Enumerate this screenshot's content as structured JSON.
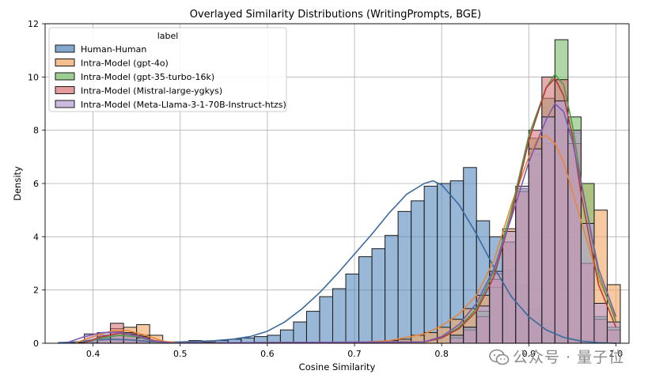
{
  "chart_data": {
    "type": "histogram",
    "title": "Overlayed Similarity Distributions (WritingPrompts, BGE)",
    "xlabel": "Cosine Similarity",
    "ylabel": "Density",
    "xlim": [
      0.345,
      1.015
    ],
    "ylim": [
      0,
      12
    ],
    "xticks": [
      "0.4",
      "0.5",
      "0.6",
      "0.7",
      "0.8",
      "0.9",
      "1.0"
    ],
    "yticks": [
      "0",
      "2",
      "4",
      "6",
      "8",
      "10",
      "12"
    ],
    "grid": true,
    "legend": {
      "title": "label",
      "placement": "top-left"
    },
    "bin_width": 0.015,
    "series": [
      {
        "name": "Human-Human",
        "color": "#5a8bbd",
        "line_color": "#3a6a9e",
        "bins": [
          [
            0.36,
            0.02
          ],
          [
            0.375,
            0.03
          ],
          [
            0.39,
            0.05
          ],
          [
            0.405,
            0.1
          ],
          [
            0.42,
            0.1
          ],
          [
            0.435,
            0.1
          ],
          [
            0.45,
            0.08
          ],
          [
            0.465,
            0.06
          ],
          [
            0.48,
            0.05
          ],
          [
            0.495,
            0.05
          ],
          [
            0.51,
            0.1
          ],
          [
            0.525,
            0.05
          ],
          [
            0.54,
            0.1
          ],
          [
            0.555,
            0.15
          ],
          [
            0.57,
            0.2
          ],
          [
            0.585,
            0.25
          ],
          [
            0.6,
            0.3
          ],
          [
            0.615,
            0.5
          ],
          [
            0.63,
            0.8
          ],
          [
            0.645,
            1.2
          ],
          [
            0.66,
            1.75
          ],
          [
            0.675,
            2.05
          ],
          [
            0.69,
            2.6
          ],
          [
            0.705,
            3.25
          ],
          [
            0.72,
            3.55
          ],
          [
            0.735,
            4.05
          ],
          [
            0.75,
            4.95
          ],
          [
            0.765,
            5.35
          ],
          [
            0.78,
            5.9
          ],
          [
            0.795,
            6.0
          ],
          [
            0.81,
            6.1
          ],
          [
            0.825,
            6.6
          ],
          [
            0.84,
            4.6
          ],
          [
            0.855,
            4.0
          ],
          [
            0.87,
            2.75
          ],
          [
            0.885,
            2.2
          ],
          [
            0.9,
            1.3
          ],
          [
            0.915,
            0.75
          ],
          [
            0.93,
            0.45
          ],
          [
            0.945,
            0.2
          ],
          [
            0.96,
            0.12
          ],
          [
            0.975,
            0.05
          ]
        ],
        "kde": [
          [
            0.36,
            0.02
          ],
          [
            0.38,
            0.05
          ],
          [
            0.4,
            0.12
          ],
          [
            0.42,
            0.15
          ],
          [
            0.44,
            0.13
          ],
          [
            0.46,
            0.08
          ],
          [
            0.48,
            0.04
          ],
          [
            0.5,
            0.05
          ],
          [
            0.52,
            0.07
          ],
          [
            0.54,
            0.1
          ],
          [
            0.56,
            0.15
          ],
          [
            0.58,
            0.25
          ],
          [
            0.6,
            0.45
          ],
          [
            0.62,
            0.8
          ],
          [
            0.64,
            1.3
          ],
          [
            0.66,
            1.9
          ],
          [
            0.68,
            2.6
          ],
          [
            0.7,
            3.35
          ],
          [
            0.72,
            4.1
          ],
          [
            0.74,
            4.9
          ],
          [
            0.76,
            5.6
          ],
          [
            0.78,
            6.0
          ],
          [
            0.79,
            6.1
          ],
          [
            0.8,
            5.95
          ],
          [
            0.82,
            5.2
          ],
          [
            0.84,
            4.1
          ],
          [
            0.86,
            2.85
          ],
          [
            0.88,
            1.75
          ],
          [
            0.9,
            1.0
          ],
          [
            0.92,
            0.5
          ],
          [
            0.94,
            0.22
          ],
          [
            0.96,
            0.08
          ],
          [
            0.98,
            0.02
          ],
          [
            1.0,
            0.0
          ]
        ]
      },
      {
        "name": "Intra-Model (gpt-4o)",
        "color": "#f0a868",
        "line_color": "#e8883a",
        "bins": [
          [
            0.405,
            0.3
          ],
          [
            0.42,
            0.55
          ],
          [
            0.435,
            0.6
          ],
          [
            0.45,
            0.7
          ],
          [
            0.465,
            0.3
          ],
          [
            0.72,
            0.05
          ],
          [
            0.735,
            0.1
          ],
          [
            0.75,
            0.15
          ],
          [
            0.765,
            0.3
          ],
          [
            0.78,
            0.4
          ],
          [
            0.795,
            0.6
          ],
          [
            0.81,
            0.9
          ],
          [
            0.825,
            1.3
          ],
          [
            0.84,
            1.8
          ],
          [
            0.855,
            2.6
          ],
          [
            0.87,
            4.3
          ],
          [
            0.885,
            5.7
          ],
          [
            0.9,
            7.1
          ],
          [
            0.915,
            7.5
          ],
          [
            0.93,
            8.0
          ],
          [
            0.945,
            7.9
          ],
          [
            0.96,
            6.0
          ],
          [
            0.975,
            5.0
          ],
          [
            0.99,
            2.2
          ]
        ],
        "kde": [
          [
            0.38,
            0.02
          ],
          [
            0.4,
            0.25
          ],
          [
            0.42,
            0.45
          ],
          [
            0.44,
            0.48
          ],
          [
            0.46,
            0.3
          ],
          [
            0.48,
            0.08
          ],
          [
            0.5,
            0.01
          ],
          [
            0.7,
            0.02
          ],
          [
            0.74,
            0.1
          ],
          [
            0.78,
            0.35
          ],
          [
            0.8,
            0.65
          ],
          [
            0.82,
            1.1
          ],
          [
            0.84,
            1.8
          ],
          [
            0.86,
            3.1
          ],
          [
            0.88,
            5.2
          ],
          [
            0.9,
            7.0
          ],
          [
            0.91,
            7.7
          ],
          [
            0.92,
            7.8
          ],
          [
            0.93,
            7.5
          ],
          [
            0.94,
            6.8
          ],
          [
            0.96,
            4.6
          ],
          [
            0.98,
            2.4
          ],
          [
            1.0,
            0.95
          ]
        ]
      },
      {
        "name": "Intra-Model (gpt-35-turbo-16k)",
        "color": "#7cbf6e",
        "line_color": "#4d9a44",
        "bins": [
          [
            0.405,
            0.2
          ],
          [
            0.42,
            0.3
          ],
          [
            0.435,
            0.35
          ],
          [
            0.45,
            0.3
          ],
          [
            0.81,
            0.3
          ],
          [
            0.825,
            0.6
          ],
          [
            0.84,
            1.2
          ],
          [
            0.855,
            2.1
          ],
          [
            0.87,
            3.8
          ],
          [
            0.885,
            5.8
          ],
          [
            0.9,
            7.7
          ],
          [
            0.915,
            9.2
          ],
          [
            0.93,
            11.4
          ],
          [
            0.945,
            8.5
          ],
          [
            0.96,
            6.0
          ],
          [
            0.975,
            1.0
          ],
          [
            0.99,
            0.6
          ]
        ],
        "kde": [
          [
            0.39,
            0.02
          ],
          [
            0.41,
            0.2
          ],
          [
            0.43,
            0.3
          ],
          [
            0.45,
            0.25
          ],
          [
            0.47,
            0.08
          ],
          [
            0.49,
            0.01
          ],
          [
            0.78,
            0.05
          ],
          [
            0.8,
            0.2
          ],
          [
            0.82,
            0.6
          ],
          [
            0.84,
            1.3
          ],
          [
            0.86,
            2.7
          ],
          [
            0.88,
            5.0
          ],
          [
            0.9,
            7.8
          ],
          [
            0.92,
            9.6
          ],
          [
            0.93,
            10.1
          ],
          [
            0.94,
            9.7
          ],
          [
            0.95,
            8.2
          ],
          [
            0.96,
            6.1
          ],
          [
            0.98,
            2.6
          ],
          [
            1.0,
            0.8
          ]
        ]
      },
      {
        "name": "Intra-Model (Mistral-large-ygkys)",
        "color": "#d9797a",
        "line_color": "#b83a3a",
        "bins": [
          [
            0.405,
            0.25
          ],
          [
            0.42,
            0.75
          ],
          [
            0.435,
            0.4
          ],
          [
            0.45,
            0.25
          ],
          [
            0.81,
            0.2
          ],
          [
            0.825,
            0.5
          ],
          [
            0.84,
            1.0
          ],
          [
            0.855,
            2.4
          ],
          [
            0.87,
            3.8
          ],
          [
            0.885,
            5.7
          ],
          [
            0.9,
            8.0
          ],
          [
            0.915,
            10.0
          ],
          [
            0.93,
            9.9
          ],
          [
            0.945,
            7.5
          ],
          [
            0.96,
            3.0
          ],
          [
            0.975,
            0.9
          ],
          [
            0.99,
            0.5
          ]
        ],
        "kde": [
          [
            0.39,
            0.02
          ],
          [
            0.41,
            0.25
          ],
          [
            0.43,
            0.38
          ],
          [
            0.45,
            0.3
          ],
          [
            0.47,
            0.1
          ],
          [
            0.49,
            0.01
          ],
          [
            0.78,
            0.05
          ],
          [
            0.8,
            0.2
          ],
          [
            0.82,
            0.55
          ],
          [
            0.84,
            1.2
          ],
          [
            0.86,
            2.5
          ],
          [
            0.88,
            4.8
          ],
          [
            0.9,
            7.6
          ],
          [
            0.92,
            9.6
          ],
          [
            0.93,
            9.95
          ],
          [
            0.94,
            9.3
          ],
          [
            0.95,
            7.8
          ],
          [
            0.96,
            5.6
          ],
          [
            0.98,
            2.2
          ],
          [
            1.0,
            0.6
          ]
        ]
      },
      {
        "name": "Intra-Model (Meta-Llama-3-1-70B-Instruct-htzs)",
        "color": "#b7a3d6",
        "line_color": "#7d5ab3",
        "bins": [
          [
            0.39,
            0.35
          ],
          [
            0.405,
            0.4
          ],
          [
            0.42,
            0.45
          ],
          [
            0.435,
            0.35
          ],
          [
            0.45,
            0.2
          ],
          [
            0.81,
            0.3
          ],
          [
            0.825,
            0.6
          ],
          [
            0.84,
            1.4
          ],
          [
            0.855,
            2.7
          ],
          [
            0.87,
            4.2
          ],
          [
            0.885,
            5.9
          ],
          [
            0.9,
            7.3
          ],
          [
            0.915,
            8.5
          ],
          [
            0.93,
            9.1
          ],
          [
            0.945,
            8.0
          ],
          [
            0.96,
            4.5
          ],
          [
            0.975,
            1.5
          ],
          [
            0.99,
            0.8
          ]
        ],
        "kde": [
          [
            0.37,
            0.02
          ],
          [
            0.39,
            0.25
          ],
          [
            0.41,
            0.4
          ],
          [
            0.43,
            0.42
          ],
          [
            0.45,
            0.28
          ],
          [
            0.47,
            0.08
          ],
          [
            0.49,
            0.01
          ],
          [
            0.78,
            0.05
          ],
          [
            0.8,
            0.25
          ],
          [
            0.82,
            0.7
          ],
          [
            0.84,
            1.5
          ],
          [
            0.86,
            2.8
          ],
          [
            0.88,
            4.7
          ],
          [
            0.9,
            6.8
          ],
          [
            0.92,
            8.4
          ],
          [
            0.93,
            9.0
          ],
          [
            0.94,
            8.7
          ],
          [
            0.95,
            7.6
          ],
          [
            0.96,
            6.0
          ],
          [
            0.98,
            2.8
          ],
          [
            1.0,
            1.0
          ]
        ]
      }
    ]
  },
  "watermark": {
    "text": "公众号 · 量子位",
    "icon": "wechat-icon"
  }
}
